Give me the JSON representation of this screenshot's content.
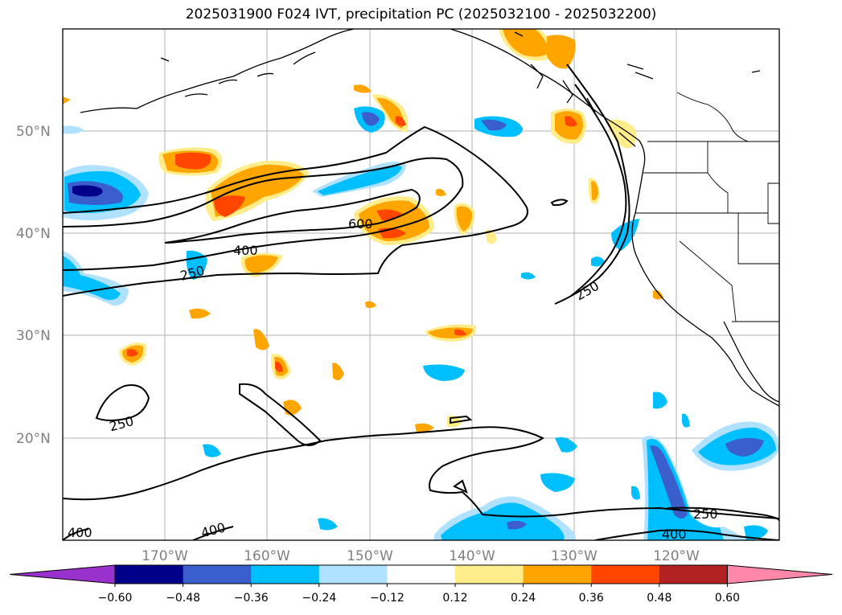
{
  "title": "2025031900 F024 IVT, precipitation PC (2025032100 - 2025032200)",
  "lat_labels": [
    "50°N",
    "40°N",
    "30°N",
    "20°N"
  ],
  "lon_labels": [
    "170°W",
    "160°W",
    "150°W",
    "140°W",
    "130°W",
    "120°W"
  ],
  "contour_labels": [
    "600",
    "400",
    "250",
    "250",
    "250",
    "400",
    "400",
    "250",
    "400"
  ],
  "colorbar": {
    "ticks": [
      "−0.60",
      "−0.48",
      "−0.36",
      "−0.24",
      "−0.12",
      "0.12",
      "0.24",
      "0.36",
      "0.48",
      "0.60"
    ],
    "colors": [
      "#9932cc",
      "#00008b",
      "#3a5fcd",
      "#00bfff",
      "#b0e2ff",
      "#ffffff",
      "#ffec8b",
      "#ffa500",
      "#ff4500",
      "#b22222",
      "#ff88aa"
    ]
  },
  "colors": {
    "contour": "#000000",
    "grid": "#b0b0b0",
    "coast": "#000000"
  }
}
